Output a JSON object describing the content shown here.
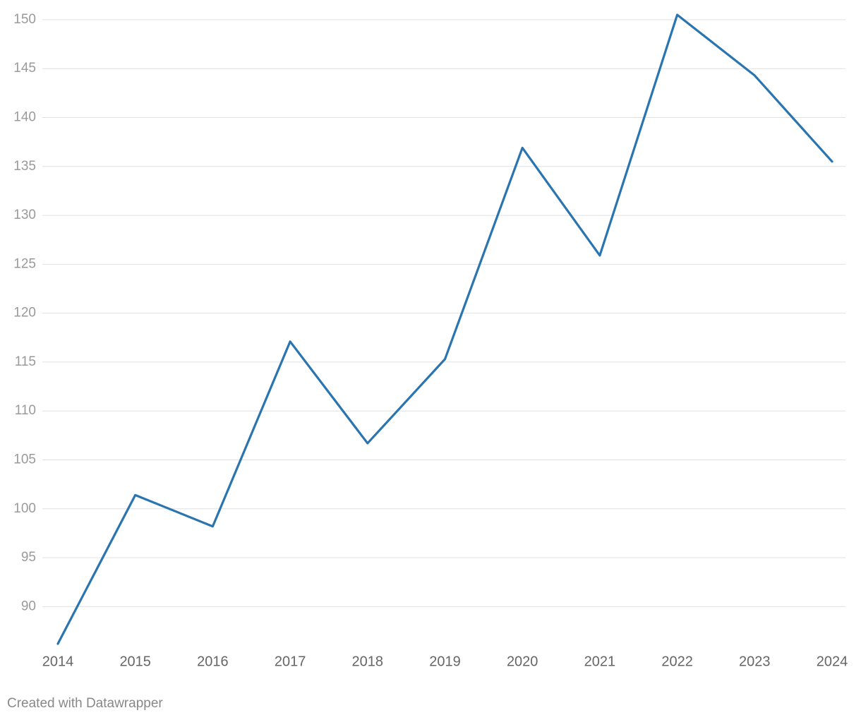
{
  "chart_data": {
    "type": "line",
    "x": [
      2014,
      2015,
      2016,
      2017,
      2018,
      2019,
      2020,
      2021,
      2022,
      2023,
      2024
    ],
    "series": [
      {
        "color": "#2a75b0",
        "values": [
          86.2,
          101.4,
          98.2,
          117.1,
          106.7,
          115.3,
          136.9,
          125.9,
          150.5,
          144.3,
          135.5
        ]
      }
    ],
    "xlim": [
      2014,
      2024
    ],
    "xticks": [
      2014,
      2015,
      2016,
      2017,
      2018,
      2019,
      2020,
      2021,
      2022,
      2023,
      2024
    ],
    "ylim": [
      86.2,
      150.5
    ],
    "yticks": [
      90,
      95,
      100,
      105,
      110,
      115,
      120,
      125,
      130,
      135,
      140,
      145,
      150
    ],
    "grid": true
  },
  "footer": "Created with Datawrapper"
}
